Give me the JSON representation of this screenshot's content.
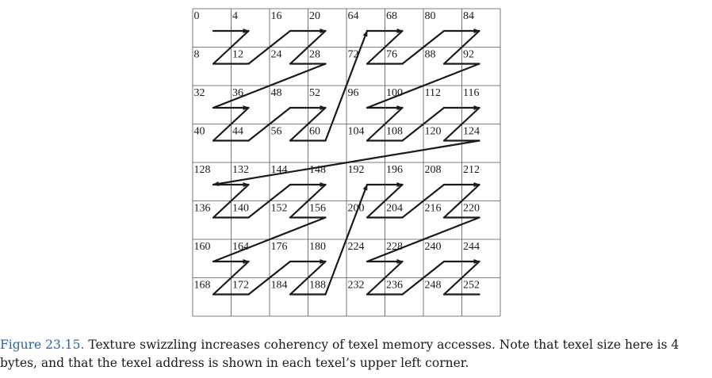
{
  "figure": {
    "grid_labels": [
      [
        "0",
        "4",
        "16",
        "20",
        "64",
        "68",
        "80",
        "84"
      ],
      [
        "8",
        "12",
        "24",
        "28",
        "72",
        "76",
        "88",
        "92"
      ],
      [
        "32",
        "36",
        "48",
        "52",
        "96",
        "100",
        "112",
        "116"
      ],
      [
        "40",
        "44",
        "56",
        "60",
        "104",
        "108",
        "120",
        "124"
      ],
      [
        "128",
        "132",
        "144",
        "148",
        "192",
        "196",
        "208",
        "212"
      ],
      [
        "136",
        "140",
        "152",
        "156",
        "200",
        "204",
        "216",
        "220"
      ],
      [
        "160",
        "164",
        "176",
        "180",
        "224",
        "228",
        "240",
        "244"
      ],
      [
        "168",
        "172",
        "184",
        "188",
        "232",
        "236",
        "248",
        "252"
      ]
    ],
    "line_color": "#1a1a1a",
    "grid_color": "#555555"
  },
  "caption": {
    "label": "Figure 23.15.",
    "text": " Texture swizzling increases coherency of texel memory accesses. Note that texel size here is 4 bytes, and that the texel address is shown in each texel’s upper left corner."
  },
  "colors": {
    "caption_label": "#2a63a8"
  }
}
